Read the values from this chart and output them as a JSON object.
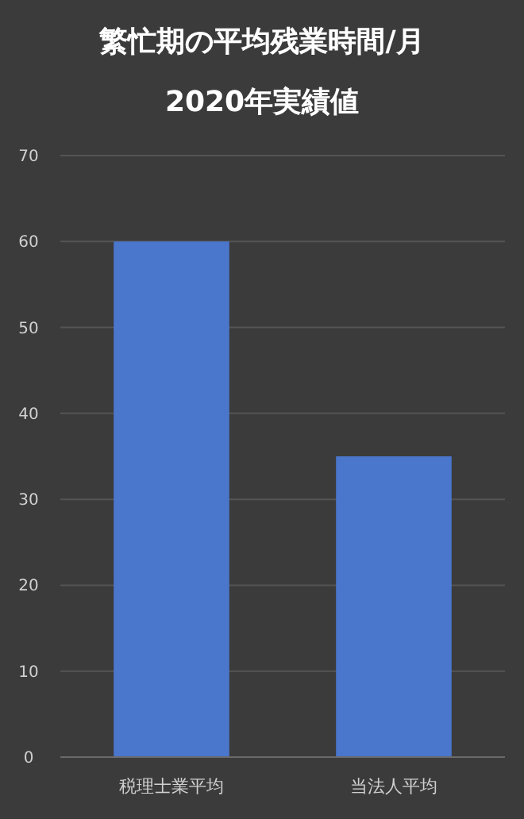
{
  "chart_data": {
    "type": "bar",
    "title": "繁忙期の平均残業時間/月",
    "subtitle": "2020年実績値",
    "categories": [
      "税理士業平均",
      "当法人平均"
    ],
    "values": [
      60,
      35
    ],
    "color": "#4a76cc",
    "ylim": [
      0,
      70
    ],
    "yticks": [
      0,
      10,
      20,
      30,
      40,
      50,
      60,
      70
    ],
    "grid": "y"
  }
}
